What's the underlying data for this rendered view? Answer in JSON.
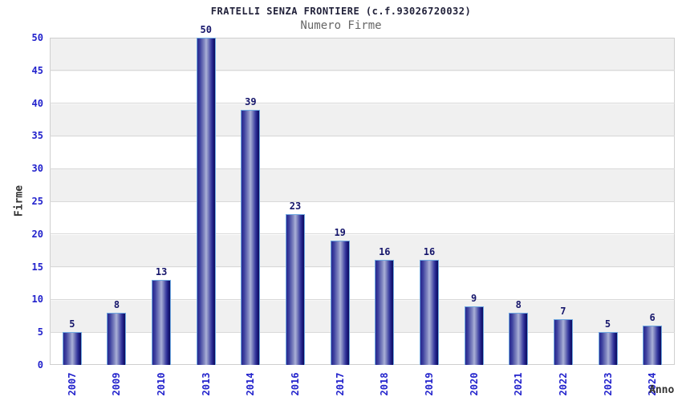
{
  "title": "FRATELLI SENZA FRONTIERE (c.f.93026720032)",
  "subtitle": "Numero Firme",
  "chart_data": {
    "type": "bar",
    "title": "FRATELLI SENZA FRONTIERE (c.f.93026720032)",
    "subtitle": "Numero Firme",
    "categories": [
      "2007",
      "2009",
      "2010",
      "2013",
      "2014",
      "2016",
      "2017",
      "2018",
      "2019",
      "2020",
      "2021",
      "2022",
      "2023",
      "2024"
    ],
    "values": [
      5,
      8,
      13,
      50,
      39,
      23,
      19,
      16,
      16,
      9,
      8,
      7,
      5,
      6
    ],
    "xlabel": "Anno",
    "ylabel": "Firme",
    "ylim": [
      0,
      50
    ],
    "yticks": [
      0,
      5,
      10,
      15,
      20,
      25,
      30,
      35,
      40,
      45,
      50
    ],
    "grid": "horizontal-bands",
    "legend": "none",
    "colors": {
      "tick_label": "#2222cc",
      "value_label": "#16166b",
      "bar_edge": "#6fa8e0",
      "bar_dark": "#1a1a7e",
      "bar_light": "#abb0d8",
      "band_gray": "#f0f0f0",
      "gridline": "#d9d9d9",
      "axis_title": "#333333",
      "subtitle_color": "#666666",
      "title_color": "#21213a"
    }
  }
}
